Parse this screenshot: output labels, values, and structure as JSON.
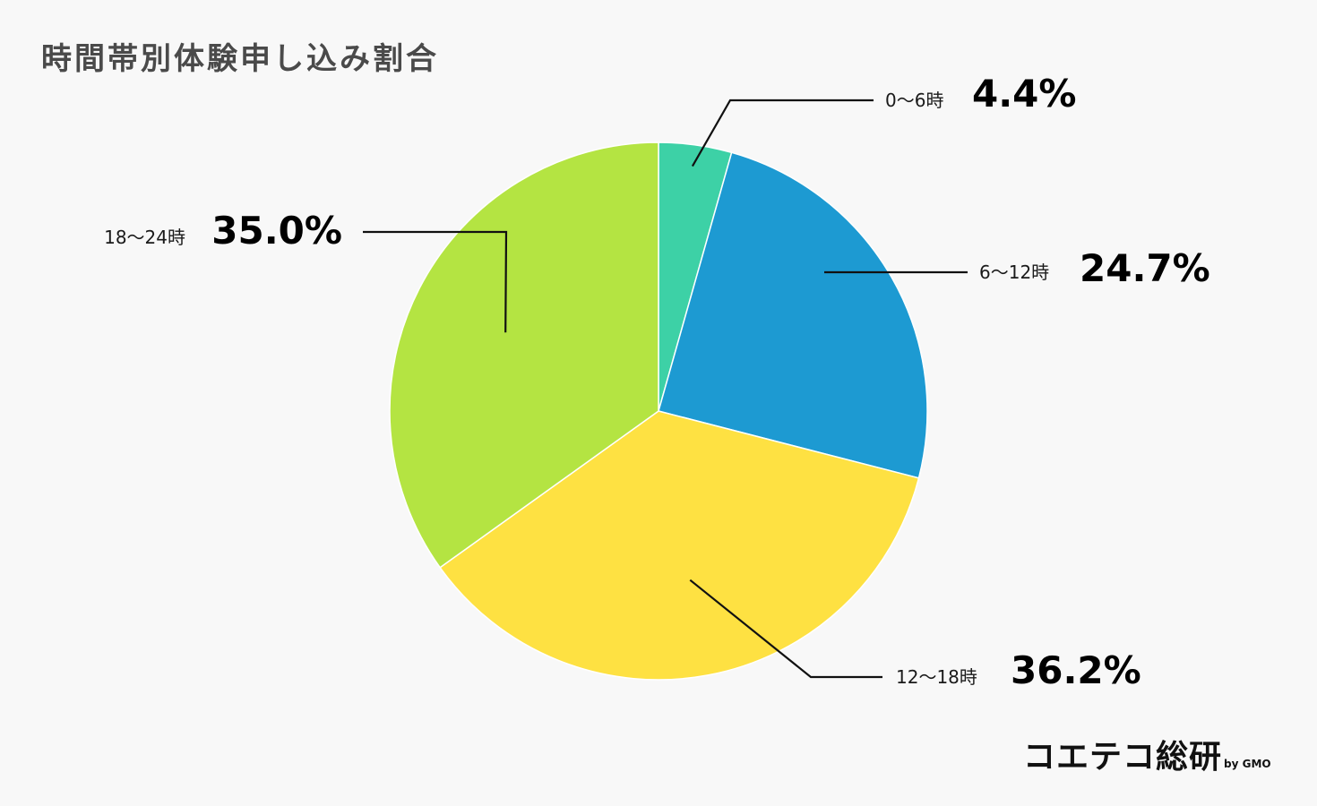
{
  "chart_data": {
    "type": "pie",
    "title": "時間帯別体験申し込み割合",
    "categories": [
      "0〜6時",
      "6〜12時",
      "12〜18時",
      "18〜24時"
    ],
    "values": [
      4.4,
      24.7,
      36.2,
      35.0
    ],
    "value_labels": [
      "4.4%",
      "24.7%",
      "36.2%",
      "35.0%"
    ],
    "colors": [
      "#3dd1a6",
      "#1d9ad2",
      "#fee142",
      "#b4e442"
    ],
    "start_angle": "top (12 o'clock)",
    "direction": "clockwise",
    "legend": "none"
  },
  "branding": {
    "logo_text": "コエテコ総研",
    "logo_sub": "by GMO"
  }
}
